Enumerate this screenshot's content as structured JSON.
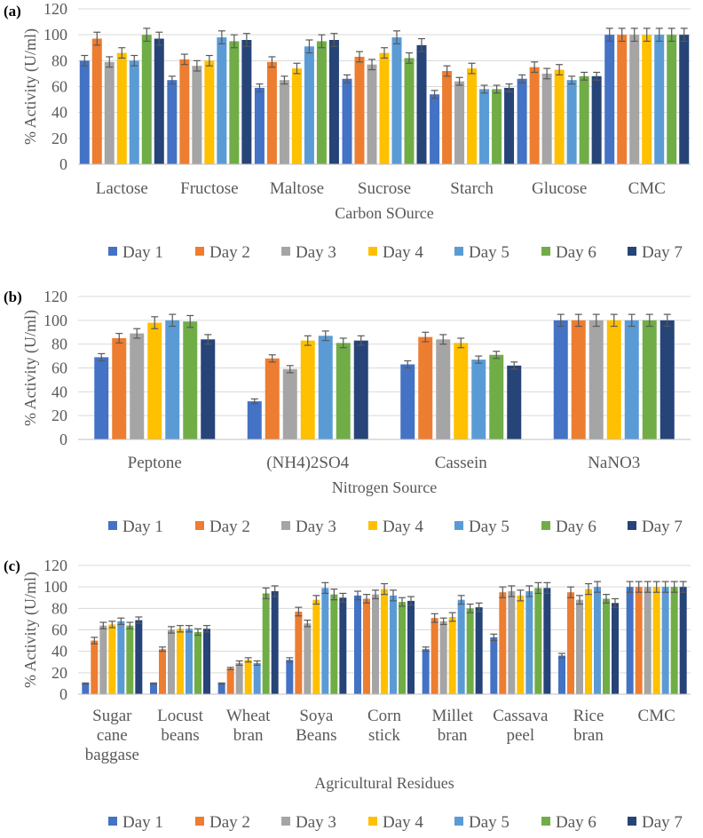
{
  "colors": [
    "#4472C4",
    "#ED7D31",
    "#A5A5A5",
    "#FFC000",
    "#5B9BD5",
    "#70AD47",
    "#264478"
  ],
  "chart_data": [
    {
      "type": "bar",
      "panel_label": "(a)",
      "ylabel": "% Activity (U/ml)",
      "xlabel": "Carbon SOurce",
      "ylim": [
        0,
        120
      ],
      "yticks": [
        0,
        20,
        40,
        60,
        80,
        100,
        120
      ],
      "grid": true,
      "legend_position": "bottom",
      "categories": [
        [
          "Lactose"
        ],
        [
          "Fructose"
        ],
        [
          "Maltose"
        ],
        [
          "Sucrose"
        ],
        [
          "Starch"
        ],
        [
          "Glucose"
        ],
        [
          "CMC"
        ]
      ],
      "series": [
        {
          "name": "Day 1",
          "values": [
            80,
            65,
            59,
            66,
            54,
            66,
            100
          ],
          "errors": [
            4,
            3,
            3,
            3,
            3,
            3,
            5
          ]
        },
        {
          "name": "Day 2",
          "values": [
            97,
            81,
            79,
            83,
            72,
            75,
            100
          ],
          "errors": [
            5,
            4,
            4,
            4,
            4,
            4,
            5
          ]
        },
        {
          "name": "Day 3",
          "values": [
            79,
            76,
            65,
            77,
            64,
            70,
            100
          ],
          "errors": [
            4,
            4,
            3,
            4,
            3,
            4,
            5
          ]
        },
        {
          "name": "Day 4",
          "values": [
            86,
            80,
            74,
            86,
            74,
            73,
            100
          ],
          "errors": [
            4,
            4,
            4,
            4,
            4,
            4,
            5
          ]
        },
        {
          "name": "Day 5",
          "values": [
            80,
            98,
            91,
            98,
            58,
            65,
            100
          ],
          "errors": [
            4,
            5,
            5,
            5,
            3,
            3,
            5
          ]
        },
        {
          "name": "Day 6",
          "values": [
            100,
            95,
            95,
            82,
            58,
            68,
            100
          ],
          "errors": [
            5,
            5,
            5,
            4,
            3,
            3,
            5
          ]
        },
        {
          "name": "Day 7",
          "values": [
            97,
            96,
            96,
            92,
            59,
            68,
            100
          ],
          "errors": [
            5,
            5,
            5,
            5,
            3,
            3,
            5
          ]
        }
      ]
    },
    {
      "type": "bar",
      "panel_label": "(b)",
      "ylabel": "% Activity (U/ml)",
      "xlabel": "Nitrogen Source",
      "ylim": [
        0,
        120
      ],
      "yticks": [
        0,
        20,
        40,
        60,
        80,
        100,
        120
      ],
      "grid": true,
      "legend_position": "bottom",
      "categories": [
        [
          "Peptone"
        ],
        [
          "(NH4)2SO4"
        ],
        [
          "Cassein"
        ],
        [
          "NaNO3"
        ]
      ],
      "series": [
        {
          "name": "Day 1",
          "values": [
            69,
            32,
            63,
            100
          ],
          "errors": [
            3,
            2,
            3,
            5
          ]
        },
        {
          "name": "Day 2",
          "values": [
            85,
            68,
            86,
            100
          ],
          "errors": [
            4,
            3,
            4,
            5
          ]
        },
        {
          "name": "Day 3",
          "values": [
            89,
            59,
            84,
            100
          ],
          "errors": [
            4,
            3,
            4,
            5
          ]
        },
        {
          "name": "Day 4",
          "values": [
            98,
            83,
            81,
            100
          ],
          "errors": [
            5,
            4,
            4,
            5
          ]
        },
        {
          "name": "Day 5",
          "values": [
            100,
            87,
            67,
            100
          ],
          "errors": [
            5,
            4,
            3,
            5
          ]
        },
        {
          "name": "Day 6",
          "values": [
            99,
            81,
            71,
            100
          ],
          "errors": [
            5,
            4,
            3,
            5
          ]
        },
        {
          "name": "Day 7",
          "values": [
            84,
            83,
            62,
            100
          ],
          "errors": [
            4,
            4,
            3,
            5
          ]
        }
      ]
    },
    {
      "type": "bar",
      "panel_label": "(c)",
      "ylabel": "% Activity (U/ml)",
      "xlabel": "Agricultural Residues",
      "ylim": [
        0,
        120
      ],
      "yticks": [
        0,
        20,
        40,
        60,
        80,
        100,
        120
      ],
      "grid": true,
      "legend_position": "bottom",
      "categories": [
        [
          "Sugar",
          "cane",
          "baggase"
        ],
        [
          "Locust",
          "beans"
        ],
        [
          "Wheat",
          "bran"
        ],
        [
          "Soya",
          "Beans"
        ],
        [
          "Corn",
          "stick"
        ],
        [
          "Millet",
          "bran"
        ],
        [
          "Cassava",
          "peel"
        ],
        [
          "Rice",
          "bran"
        ],
        [
          "CMC"
        ]
      ],
      "series": [
        {
          "name": "Day 1",
          "values": [
            10,
            10,
            10,
            32,
            92,
            42,
            53,
            36,
            100
          ],
          "errors": [
            0.5,
            0.5,
            0.5,
            2,
            4,
            2,
            3,
            2,
            5
          ]
        },
        {
          "name": "Day 2",
          "values": [
            50,
            42,
            24,
            77,
            89,
            71,
            95,
            95,
            100
          ],
          "errors": [
            3,
            2,
            1,
            4,
            4,
            4,
            5,
            5,
            5
          ]
        },
        {
          "name": "Day 3",
          "values": [
            64,
            60,
            29,
            66,
            93,
            68,
            96,
            88,
            100
          ],
          "errors": [
            3,
            3,
            2,
            3,
            4,
            3,
            5,
            4,
            5
          ]
        },
        {
          "name": "Day 4",
          "values": [
            65,
            61,
            32,
            88,
            98,
            72,
            92,
            98,
            100
          ],
          "errors": [
            3,
            3,
            2,
            4,
            5,
            4,
            5,
            5,
            5
          ]
        },
        {
          "name": "Day 5",
          "values": [
            68,
            61,
            29,
            99,
            92,
            88,
            96,
            100,
            100
          ],
          "errors": [
            3,
            3,
            2,
            5,
            5,
            4,
            5,
            5,
            5
          ]
        },
        {
          "name": "Day 6",
          "values": [
            64,
            58,
            94,
            93,
            86,
            80,
            99,
            89,
            100
          ],
          "errors": [
            3,
            3,
            5,
            5,
            4,
            4,
            5,
            4,
            5
          ]
        },
        {
          "name": "Day 7",
          "values": [
            69,
            61,
            96,
            90,
            87,
            81,
            99,
            85,
            100
          ],
          "errors": [
            3,
            3,
            5,
            4,
            4,
            4,
            5,
            4,
            5
          ]
        }
      ]
    }
  ]
}
